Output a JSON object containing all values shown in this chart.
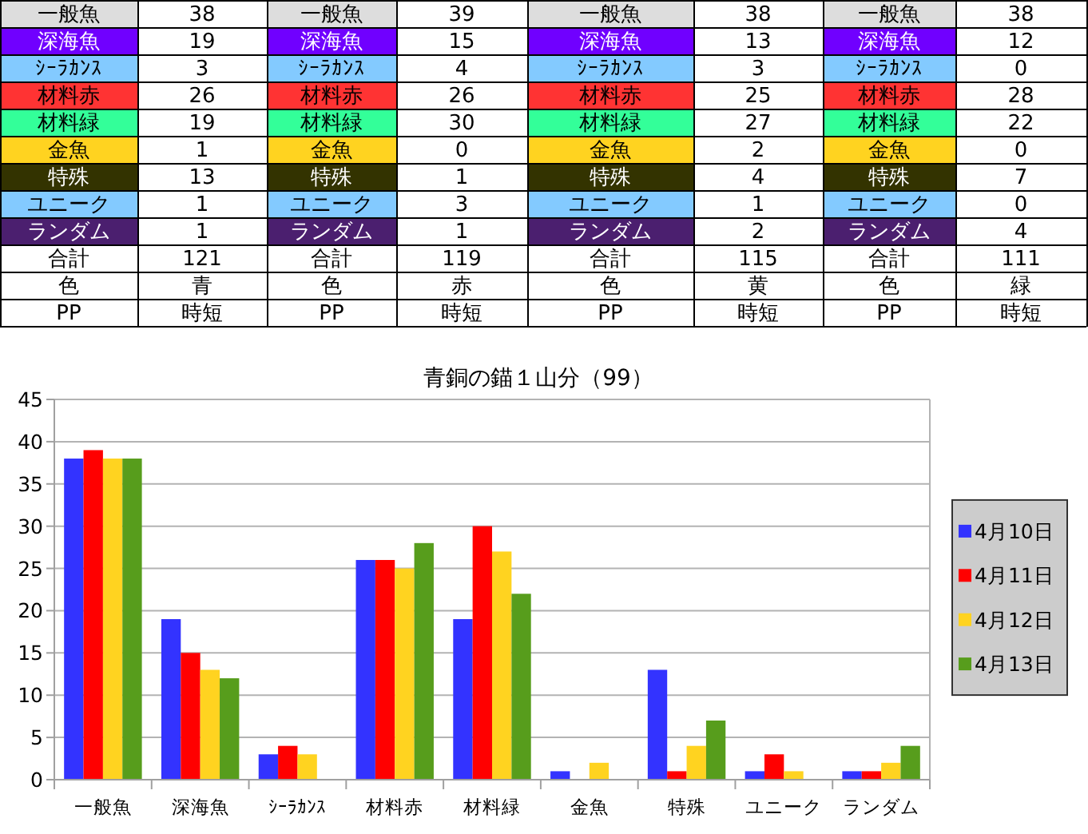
{
  "chart_data": [
    {
      "type": "other",
      "annotations": [
        "一般魚",
        "38",
        "一般魚",
        "39",
        "一般魚",
        "38",
        "一般魚",
        "38",
        "深海魚",
        "19",
        "深海魚",
        "15",
        "深海魚",
        "13",
        "深海魚",
        "12",
        "ｼｰﾗｶﾝｽ",
        "3",
        "ｼｰﾗｶﾝｽ",
        "4",
        "ｼｰﾗｶﾝｽ",
        "3",
        "ｼｰﾗｶﾝｽ",
        "0",
        "材料赤",
        "26",
        "材料赤",
        "26",
        "材料赤",
        "25",
        "材料赤",
        "28",
        "材料緑",
        "19",
        "材料緑",
        "30",
        "材料緑",
        "27",
        "材料緑",
        "22",
        "金魚",
        "1",
        "金魚",
        "0",
        "金魚",
        "2",
        "金魚",
        "0",
        "特殊",
        "13",
        "特殊",
        "1",
        "特殊",
        "4",
        "特殊",
        "7",
        "ユニーク",
        "1",
        "ユニーク",
        "3",
        "ユニーク",
        "1",
        "ユニーク",
        "0",
        "ランダム",
        "1",
        "ランダム",
        "1",
        "ランダム",
        "2",
        "ランダム",
        "4",
        "合計",
        "121",
        "合計",
        "119",
        "合計",
        "115",
        "合計",
        "111",
        "色",
        "青",
        "色",
        "赤",
        "色",
        "黄",
        "色",
        "緑",
        "PP",
        "時短",
        "PP",
        "時短",
        "PP",
        "時短",
        "PP",
        "時短"
      ]
    },
    {
      "type": "bar",
      "title": "青銅の錨１山分（99）",
      "categories": [
        "一般魚",
        "深海魚",
        "ｼｰﾗｶﾝｽ",
        "材料赤",
        "材料緑",
        "金魚",
        "特殊",
        "ユニーク",
        "ランダム"
      ],
      "series": [
        {
          "name": "4月10日",
          "color": "#3333ff",
          "values": [
            38,
            19,
            3,
            26,
            19,
            1,
            13,
            1,
            1
          ]
        },
        {
          "name": "4月11日",
          "color": "#ff0000",
          "values": [
            39,
            15,
            4,
            26,
            30,
            0,
            1,
            3,
            1
          ]
        },
        {
          "name": "4月12日",
          "color": "#ffd320",
          "values": [
            38,
            13,
            3,
            25,
            27,
            2,
            4,
            1,
            2
          ]
        },
        {
          "name": "4月13日",
          "color": "#579d1c",
          "values": [
            38,
            12,
            0,
            28,
            22,
            0,
            7,
            0,
            4
          ]
        }
      ],
      "ylim": [
        0,
        45
      ],
      "yticks": [
        0,
        5,
        10,
        15,
        20,
        25,
        30,
        35,
        40,
        45
      ],
      "grid": "y",
      "legend": "right"
    }
  ]
}
